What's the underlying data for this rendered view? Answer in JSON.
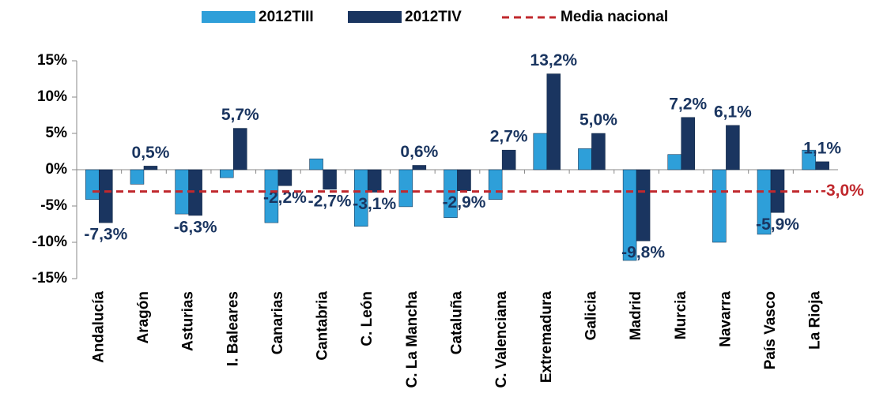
{
  "chart_data": {
    "type": "bar",
    "categories": [
      "Andalucía",
      "Aragón",
      "Asturias",
      "I. Baleares",
      "Canarias",
      "Cantabria",
      "C. León",
      "C. La Mancha",
      "Cataluña",
      "C. Valenciana",
      "Extremadura",
      "Galicia",
      "Madrid",
      "Murcia",
      "Navarra",
      "País Vasco",
      "La Rioja"
    ],
    "series": [
      {
        "name": "2012TIII",
        "color": "#2e9fd9",
        "values": [
          -4.1,
          -2.0,
          -6.1,
          -1.1,
          -7.3,
          1.5,
          -7.8,
          -5.1,
          -6.6,
          -4.1,
          5.0,
          2.9,
          -12.5,
          2.1,
          -10.0,
          -8.9,
          2.7
        ]
      },
      {
        "name": "2012TIV",
        "color": "#1a3560",
        "values": [
          -7.3,
          0.5,
          -6.3,
          5.7,
          -2.2,
          -2.7,
          -3.1,
          0.6,
          -2.9,
          2.7,
          13.2,
          5.0,
          -9.8,
          7.2,
          6.1,
          -5.9,
          1.1
        ],
        "value_labels": [
          "-7,3%",
          "0,5%",
          "-6,3%",
          "5,7%",
          "-2,2%",
          "-2,7%",
          "-3,1%",
          "0,6%",
          "-2,9%",
          "2,7%",
          "13,2%",
          "5,0%",
          "-9,8%",
          "7,2%",
          "6,1%",
          "-5,9%",
          "1,1%"
        ]
      }
    ],
    "reference_line": {
      "name": "Media nacional",
      "value": -3.0,
      "value_label": "-3,0%",
      "color": "#c0282d"
    },
    "ylim": [
      -15,
      15
    ],
    "yticks": [
      {
        "value": -15,
        "label": "-15%"
      },
      {
        "value": -10,
        "label": "-10%"
      },
      {
        "value": -5,
        "label": "-5%"
      },
      {
        "value": 0,
        "label": "0%"
      },
      {
        "value": 5,
        "label": "5%"
      },
      {
        "value": 10,
        "label": "10%"
      },
      {
        "value": 15,
        "label": "15%"
      }
    ],
    "legend": "top"
  }
}
